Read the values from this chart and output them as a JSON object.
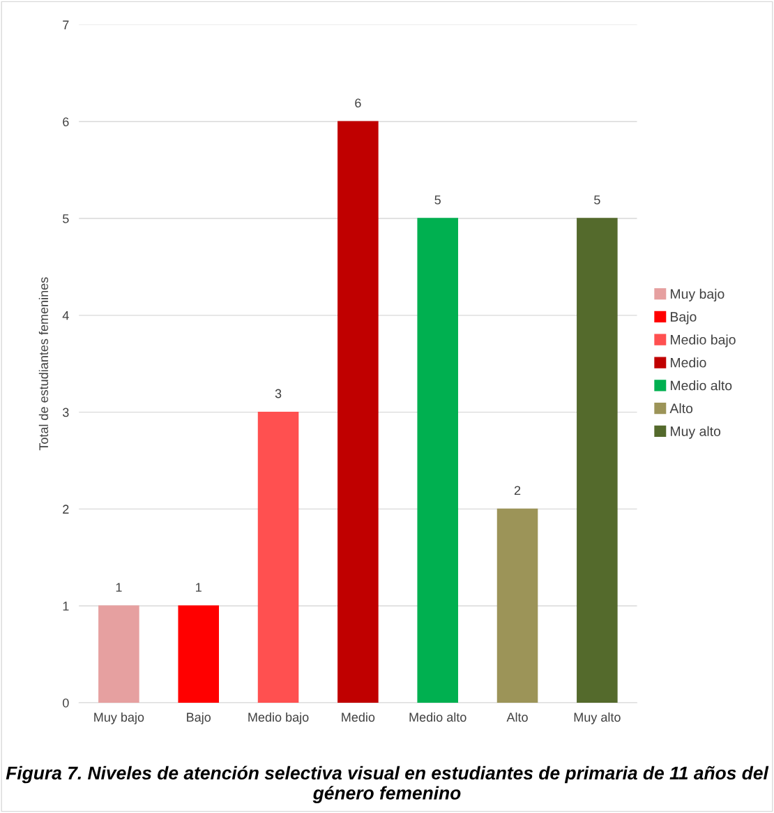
{
  "chart_data": {
    "type": "bar",
    "title": "Figura 7. Niveles de atención selectiva visual en estudiantes de primaria de 11 años del género femenino",
    "ylabel": "Total de estudiantes femenines",
    "categories": [
      "Muy bajo",
      "Bajo",
      "Medio bajo",
      "Medio",
      "Medio alto",
      "Alto",
      "Muy alto"
    ],
    "series": [
      {
        "name": "Muy bajo",
        "color": "#e6a0a0",
        "values": [
          1,
          null,
          null,
          null,
          null,
          null,
          null
        ]
      },
      {
        "name": "Bajo",
        "color": "#ff0000",
        "values": [
          null,
          1,
          null,
          null,
          null,
          null,
          null
        ]
      },
      {
        "name": "Medio bajo",
        "color": "#ff5050",
        "values": [
          null,
          null,
          3,
          null,
          null,
          null,
          null
        ]
      },
      {
        "name": "Medio",
        "color": "#c00000",
        "values": [
          null,
          null,
          null,
          6,
          null,
          null,
          null
        ]
      },
      {
        "name": "Medio alto",
        "color": "#00b050",
        "values": [
          null,
          null,
          null,
          null,
          5,
          null,
          null
        ]
      },
      {
        "name": "Alto",
        "color": "#9c9458",
        "values": [
          null,
          null,
          null,
          null,
          null,
          2,
          null
        ]
      },
      {
        "name": "Muy alto",
        "color": "#546a2c",
        "values": [
          null,
          null,
          null,
          null,
          null,
          null,
          5
        ]
      }
    ],
    "ylim": [
      0,
      7
    ],
    "yticks": [
      0,
      1,
      2,
      3,
      4,
      5,
      6,
      7
    ],
    "grid": "y",
    "legend": "right",
    "data_labels": true
  }
}
